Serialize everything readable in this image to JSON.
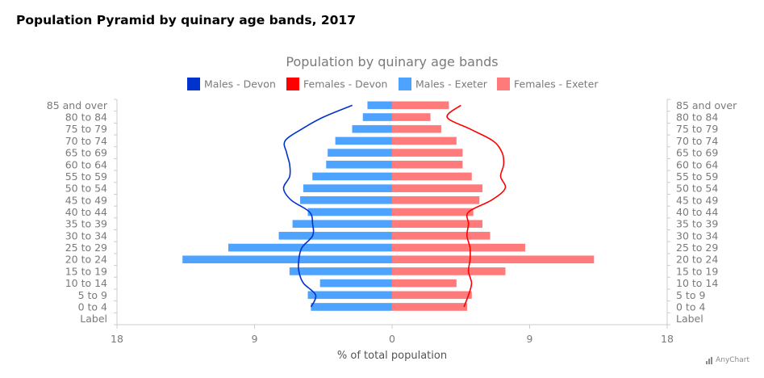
{
  "page": {
    "title": "Population Pyramid by quinary age bands, 2017"
  },
  "credits": {
    "text": "AnyChart"
  },
  "colors": {
    "males_devon": "#0033cc",
    "females_devon": "#ff0000",
    "males_exeter": "#4da3ff",
    "females_exeter": "#ff7a7a",
    "axis": "#cccccc",
    "text": "#7a7a7a"
  },
  "chart_data": {
    "type": "bar",
    "title": "Population by quinary age bands",
    "xlabel": "% of total population",
    "ylabel": "",
    "xlim": [
      -18,
      18
    ],
    "x_ticks": [
      -18,
      -9,
      0,
      9,
      18
    ],
    "x_tick_labels": [
      "18",
      "9",
      "0",
      "9",
      "18"
    ],
    "legend": {
      "position": "top"
    },
    "categories": [
      "Label",
      "0 to 4",
      "5 to 9",
      "10 to 14",
      "15 to 19",
      "20 to 24",
      "25 to 29",
      "30 to 34",
      "35 to 39",
      "40 to 44",
      "45 to 49",
      "50 to 54",
      "55 to 59",
      "60 to 64",
      "65 to 69",
      "70 to 74",
      "75 to 79",
      "80 to 84",
      "85 and over"
    ],
    "series": [
      {
        "name": "Males - Devon",
        "type": "line",
        "side": "left",
        "values": [
          null,
          5.3,
          5.0,
          5.8,
          6.1,
          6.1,
          5.9,
          5.2,
          5.2,
          5.4,
          6.6,
          7.1,
          6.7,
          6.7,
          6.9,
          7.0,
          5.9,
          4.5,
          2.6
        ]
      },
      {
        "name": "Females - Devon",
        "type": "line",
        "side": "right",
        "values": [
          null,
          4.7,
          5.0,
          5.2,
          5.0,
          5.1,
          5.1,
          4.9,
          5.0,
          5.0,
          6.5,
          7.4,
          7.1,
          7.3,
          7.2,
          6.6,
          5.1,
          3.6,
          4.5
        ]
      },
      {
        "name": "Males - Exeter",
        "type": "bar",
        "side": "left",
        "values": [
          0,
          5.3,
          5.5,
          4.7,
          6.7,
          13.7,
          10.7,
          7.4,
          6.5,
          5.5,
          6.0,
          5.8,
          5.2,
          4.3,
          4.2,
          3.7,
          2.6,
          1.9,
          1.6
        ]
      },
      {
        "name": "Females - Exeter",
        "type": "bar",
        "side": "right",
        "values": [
          0,
          4.9,
          5.2,
          4.2,
          7.4,
          13.2,
          8.7,
          6.4,
          5.9,
          5.3,
          5.7,
          5.9,
          5.2,
          4.6,
          4.6,
          4.2,
          3.2,
          2.5,
          3.7
        ]
      }
    ]
  }
}
